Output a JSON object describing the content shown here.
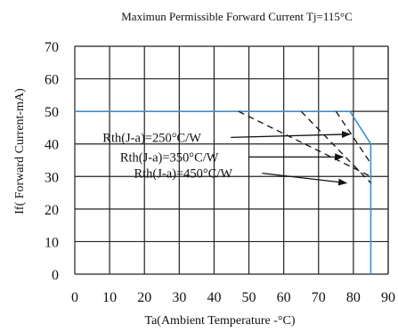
{
  "chart_data": {
    "type": "line",
    "title": "Maximun Permissible Forward Current Tj=115°C",
    "xlabel": "Ta(Ambient Temperature -°C)",
    "ylabel": "If( Forward Current-mA)",
    "xlim": [
      0,
      90
    ],
    "ylim": [
      0,
      70
    ],
    "x_ticks": [
      "0",
      "10",
      "20",
      "30",
      "40",
      "50",
      "60",
      "70",
      "80",
      "90"
    ],
    "y_ticks": [
      "0",
      "10",
      "20",
      "30",
      "40",
      "50",
      "60",
      "70"
    ],
    "grid": true,
    "series": [
      {
        "style": "solid",
        "color": "#3a8fd4",
        "x": [
          0,
          79,
          85,
          85
        ],
        "y": [
          50,
          50,
          40,
          0
        ]
      },
      {
        "style": "dashed",
        "color": "#111111",
        "x": [
          47,
          85
        ],
        "y": [
          50,
          30
        ]
      },
      {
        "style": "dashed",
        "color": "#111111",
        "x": [
          65,
          85
        ],
        "y": [
          50,
          28
        ]
      },
      {
        "style": "dashed",
        "color": "#111111",
        "x": [
          75,
          85
        ],
        "y": [
          50,
          34
        ]
      }
    ],
    "annotations": [
      {
        "text": "Rth(J-a)=250°C/W",
        "x": 8,
        "y": 42,
        "arrow_to": [
          79,
          43
        ]
      },
      {
        "text": "Rth(J-a)=350°C/W",
        "x": 13,
        "y": 36,
        "arrow_to": [
          77,
          36
        ]
      },
      {
        "text": "Rth(J-a)=450°C/W",
        "x": 17,
        "y": 31,
        "arrow_to": [
          78,
          28
        ]
      }
    ]
  }
}
